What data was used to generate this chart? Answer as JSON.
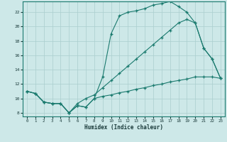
{
  "xlabel": "Humidex (Indice chaleur)",
  "bg_color": "#cde8e8",
  "line_color": "#1a7a6e",
  "grid_color": "#aacece",
  "xlim": [
    -0.5,
    23.5
  ],
  "ylim": [
    7.5,
    23.5
  ],
  "xticks": [
    0,
    1,
    2,
    3,
    4,
    5,
    6,
    7,
    8,
    9,
    10,
    11,
    12,
    13,
    14,
    15,
    16,
    17,
    18,
    19,
    20,
    21,
    22,
    23
  ],
  "yticks": [
    8,
    10,
    12,
    14,
    16,
    18,
    20,
    22
  ],
  "line1_x": [
    0,
    1,
    2,
    3,
    4,
    5,
    6,
    7,
    8,
    9,
    10,
    11,
    12,
    13,
    14,
    15,
    16,
    17,
    18,
    19,
    20,
    21,
    22,
    23
  ],
  "line1_y": [
    11.0,
    10.7,
    9.5,
    9.3,
    9.3,
    8.0,
    9.0,
    8.8,
    10.0,
    13.0,
    19.0,
    21.5,
    22.0,
    22.2,
    22.5,
    23.0,
    23.2,
    23.5,
    22.8,
    22.0,
    20.5,
    17.0,
    15.5,
    12.8
  ],
  "line2_x": [
    0,
    1,
    2,
    3,
    4,
    5,
    6,
    7,
    8,
    9,
    10,
    11,
    12,
    13,
    14,
    15,
    16,
    17,
    18,
    19,
    20,
    21,
    22,
    23
  ],
  "line2_y": [
    11.0,
    10.7,
    9.5,
    9.3,
    9.3,
    8.0,
    9.0,
    8.8,
    10.0,
    10.3,
    10.5,
    10.8,
    11.0,
    11.3,
    11.5,
    11.8,
    12.0,
    12.3,
    12.5,
    12.7,
    13.0,
    13.0,
    13.0,
    12.8
  ],
  "line3_x": [
    0,
    1,
    2,
    3,
    4,
    5,
    6,
    7,
    8,
    9,
    10,
    11,
    12,
    13,
    14,
    15,
    16,
    17,
    18,
    19,
    20,
    21,
    22,
    23
  ],
  "line3_y": [
    11.0,
    10.7,
    9.5,
    9.3,
    9.3,
    8.0,
    9.3,
    10.0,
    10.5,
    11.5,
    12.5,
    13.5,
    14.5,
    15.5,
    16.5,
    17.5,
    18.5,
    19.5,
    20.5,
    21.0,
    20.5,
    17.0,
    15.5,
    12.8
  ]
}
